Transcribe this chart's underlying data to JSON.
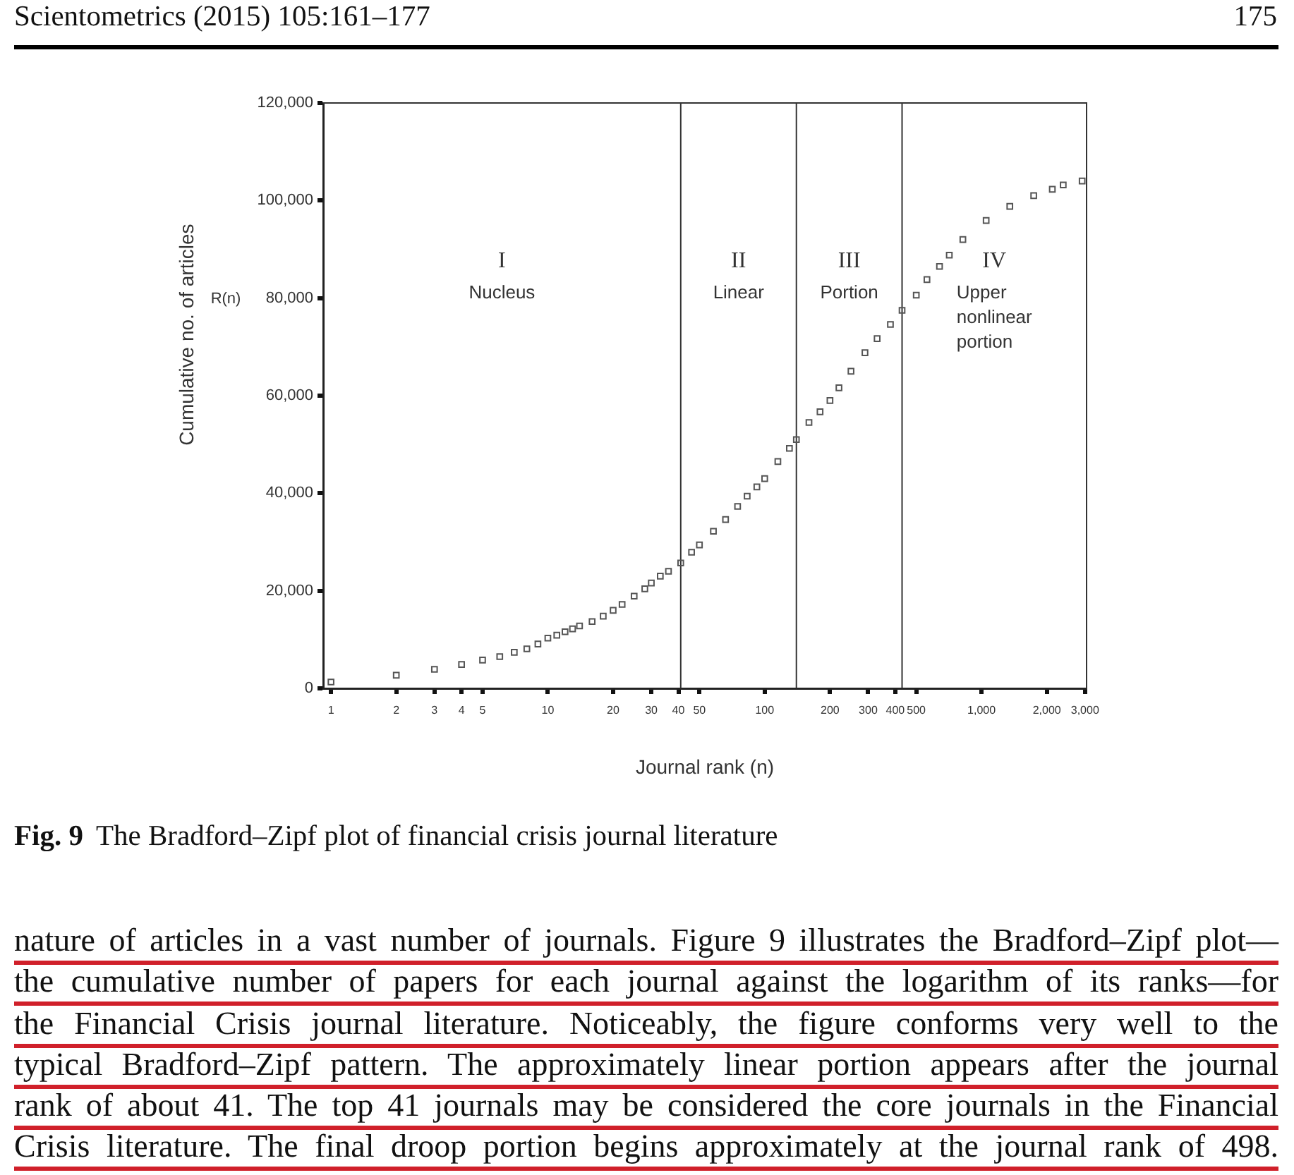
{
  "chart_data": {
    "type": "scatter",
    "title": "Fig. 9 The Bradford–Zipf plot of financial crisis journal literature",
    "xlabel": "Journal rank (n)",
    "ylabel": "Cumulative no. of articles",
    "x": [
      1,
      2,
      3,
      4,
      5,
      6,
      7,
      8,
      9,
      10,
      11,
      12,
      13,
      14,
      16,
      18,
      20,
      22,
      25,
      28,
      30,
      33,
      36,
      41,
      46,
      50,
      58,
      66,
      75,
      83,
      92,
      100,
      115,
      130,
      140,
      160,
      180,
      200,
      220,
      250,
      290,
      330,
      380,
      430,
      500,
      560,
      640,
      710,
      820,
      1050,
      1350,
      1740,
      2120,
      2380,
      2910
    ],
    "values": [
      1300,
      2700,
      3900,
      4900,
      5800,
      6500,
      7400,
      8100,
      9100,
      10300,
      10900,
      11600,
      12200,
      12800,
      13700,
      14800,
      16000,
      17200,
      18900,
      20400,
      21600,
      23000,
      24000,
      25700,
      27900,
      29400,
      32200,
      34600,
      37300,
      39400,
      41300,
      43000,
      46500,
      49200,
      51000,
      54500,
      56700,
      59000,
      61600,
      65000,
      68800,
      71700,
      74600,
      77500,
      80600,
      83800,
      86500,
      88800,
      92000,
      95900,
      98800,
      101000,
      102300,
      103200,
      104000
    ],
    "color": "#555555",
    "marker": "square",
    "log": "x",
    "grid": false,
    "legend": false,
    "xlim": [
      0.92,
      3050
    ],
    "xticks": [
      1,
      2,
      3,
      4,
      5,
      10,
      20,
      30,
      40,
      50,
      100,
      200,
      300,
      400,
      500,
      {
        "value": 1000,
        "label": "1,000"
      },
      {
        "value": 2000,
        "label": "2,000"
      },
      {
        "value": 3000,
        "label": "3,000"
      }
    ],
    "ylim": [
      0,
      120000
    ],
    "yticks": [
      0,
      {
        "value": 20000,
        "label": "20,000"
      },
      {
        "value": 40000,
        "label": "40,000"
      },
      {
        "value": 60000,
        "label": "60,000"
      },
      {
        "value": 80000,
        "label": "80,000"
      },
      {
        "value": 100000,
        "label": "100,000"
      },
      {
        "value": 120000,
        "label": "120,000"
      }
    ],
    "ref_lines": [
      {
        "axis": "x",
        "value": 41,
        "color": "#333333"
      },
      {
        "axis": "x",
        "value": 140,
        "color": "#333333"
      },
      {
        "axis": "x",
        "value": 430,
        "color": "#333333"
      }
    ],
    "annotations": [
      "Scientometrics (2015) 105:161–177",
      "175",
      "I",
      "Nucleus",
      "II",
      "Linear",
      "III",
      "Portion",
      "IV",
      "Upper nonlinear portion",
      "R(n)",
      "nature of articles in a vast number of journals. Figure 9 illustrates the Bradford–Zipf plot—\nthe cumulative number of papers for each journal against the logarithm of its ranks—for\nthe Financial Crisis journal literature. Noticeably, the figure conforms very well to the\ntypical Bradford–Zipf pattern. The approximately linear portion appears after the journal\nrank of about 41. The top 41 journals may be considered the core journals in the Financial\nCrisis literature. The final droop portion begins approximately at the journal rank of 498."
    ]
  }
}
